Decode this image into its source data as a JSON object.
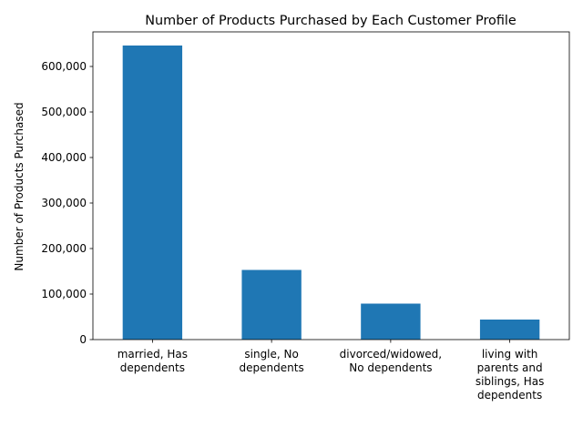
{
  "chart_data": {
    "type": "bar",
    "title": "Number of Products Purchased by Each Customer Profile",
    "xlabel": "",
    "ylabel": "Number of Products Purchased",
    "categories": [
      [
        "married, Has",
        "dependents"
      ],
      [
        "single, No",
        "dependents"
      ],
      [
        "divorced/widowed,",
        "No dependents"
      ],
      [
        "living with",
        "parents and",
        "siblings, Has",
        "dependents"
      ]
    ],
    "values": [
      646000,
      153000,
      79000,
      44000
    ],
    "ylim": [
      0,
      676000
    ],
    "yticks": [
      0,
      100000,
      200000,
      300000,
      400000,
      500000,
      600000
    ],
    "ytick_labels": [
      "0",
      "100,000",
      "200,000",
      "300,000",
      "400,000",
      "500,000",
      "600,000"
    ],
    "bar_color": "#1f77b4",
    "grid": false,
    "legend": "none"
  }
}
